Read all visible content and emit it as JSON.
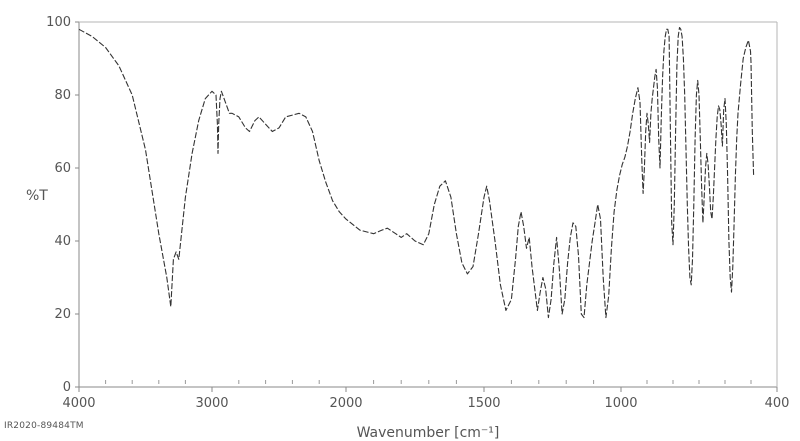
{
  "chart_data": {
    "type": "line",
    "title": "",
    "xlabel": "Wavenumber [cm⁻¹]",
    "ylabel": "%T",
    "xlim": [
      4000,
      400
    ],
    "ylim": [
      0,
      100
    ],
    "x_reversed": true,
    "x_ticks": [
      4000,
      3000,
      2000,
      1500,
      1000,
      400
    ],
    "x_tick_labels": [
      "4000",
      "3000",
      "2000",
      "1500",
      "1000",
      "400"
    ],
    "y_ticks": [
      0,
      20,
      40,
      60,
      80,
      100
    ],
    "y_tick_labels": [
      "0",
      "20",
      "40",
      "60",
      "80",
      "100"
    ],
    "grid": false,
    "line_color": "#333333",
    "series": [
      {
        "points": [
          [
            4000,
            98
          ],
          [
            3900,
            96
          ],
          [
            3800,
            93
          ],
          [
            3700,
            88
          ],
          [
            3600,
            80
          ],
          [
            3500,
            65
          ],
          [
            3400,
            42
          ],
          [
            3340,
            30
          ],
          [
            3310,
            22
          ],
          [
            3290,
            35
          ],
          [
            3270,
            37
          ],
          [
            3250,
            35
          ],
          [
            3200,
            52
          ],
          [
            3150,
            64
          ],
          [
            3100,
            73
          ],
          [
            3050,
            79
          ],
          [
            3000,
            81
          ],
          [
            2970,
            80
          ],
          [
            2960,
            72
          ],
          [
            2955,
            64
          ],
          [
            2950,
            72
          ],
          [
            2940,
            79
          ],
          [
            2930,
            81
          ],
          [
            2900,
            78
          ],
          [
            2870,
            75
          ],
          [
            2850,
            75
          ],
          [
            2800,
            74
          ],
          [
            2750,
            71
          ],
          [
            2720,
            70
          ],
          [
            2680,
            73
          ],
          [
            2650,
            74
          ],
          [
            2600,
            72
          ],
          [
            2550,
            70
          ],
          [
            2500,
            71
          ],
          [
            2450,
            74
          ],
          [
            2400,
            74.5
          ],
          [
            2350,
            75
          ],
          [
            2300,
            74
          ],
          [
            2250,
            70
          ],
          [
            2200,
            62
          ],
          [
            2150,
            56
          ],
          [
            2100,
            51
          ],
          [
            2050,
            48
          ],
          [
            2000,
            46
          ],
          [
            1950,
            43
          ],
          [
            1900,
            42
          ],
          [
            1870,
            43
          ],
          [
            1850,
            43.5
          ],
          [
            1820,
            42
          ],
          [
            1800,
            41
          ],
          [
            1780,
            42
          ],
          [
            1750,
            40
          ],
          [
            1720,
            39
          ],
          [
            1700,
            42
          ],
          [
            1680,
            50
          ],
          [
            1660,
            55
          ],
          [
            1640,
            56.5
          ],
          [
            1620,
            52
          ],
          [
            1600,
            42
          ],
          [
            1580,
            34
          ],
          [
            1560,
            31
          ],
          [
            1540,
            33
          ],
          [
            1520,
            42
          ],
          [
            1500,
            52
          ],
          [
            1490,
            55
          ],
          [
            1480,
            51
          ],
          [
            1460,
            40
          ],
          [
            1440,
            28
          ],
          [
            1420,
            21
          ],
          [
            1400,
            24
          ],
          [
            1385,
            35
          ],
          [
            1375,
            44
          ],
          [
            1365,
            48
          ],
          [
            1355,
            44
          ],
          [
            1345,
            38
          ],
          [
            1335,
            41
          ],
          [
            1325,
            33
          ],
          [
            1315,
            27
          ],
          [
            1305,
            21
          ],
          [
            1295,
            26
          ],
          [
            1285,
            30
          ],
          [
            1275,
            27
          ],
          [
            1265,
            19
          ],
          [
            1255,
            24
          ],
          [
            1245,
            34
          ],
          [
            1235,
            41
          ],
          [
            1225,
            32
          ],
          [
            1215,
            20
          ],
          [
            1205,
            24
          ],
          [
            1195,
            34
          ],
          [
            1185,
            41
          ],
          [
            1175,
            45
          ],
          [
            1165,
            44
          ],
          [
            1155,
            36
          ],
          [
            1145,
            20
          ],
          [
            1135,
            19
          ],
          [
            1125,
            28
          ],
          [
            1115,
            34
          ],
          [
            1105,
            40
          ],
          [
            1095,
            45
          ],
          [
            1085,
            50
          ],
          [
            1075,
            46
          ],
          [
            1065,
            30
          ],
          [
            1055,
            19
          ],
          [
            1045,
            25
          ],
          [
            1035,
            38
          ],
          [
            1025,
            48
          ],
          [
            1015,
            54
          ],
          [
            1005,
            58
          ],
          [
            995,
            61
          ],
          [
            985,
            63
          ],
          [
            975,
            66
          ],
          [
            965,
            70
          ],
          [
            955,
            75
          ],
          [
            945,
            79
          ],
          [
            935,
            82
          ],
          [
            927,
            78
          ],
          [
            920,
            62
          ],
          [
            915,
            53
          ],
          [
            910,
            60
          ],
          [
            905,
            70
          ],
          [
            900,
            75
          ],
          [
            895,
            72
          ],
          [
            890,
            67
          ],
          [
            885,
            75
          ],
          [
            880,
            79
          ],
          [
            875,
            82
          ],
          [
            870,
            85
          ],
          [
            865,
            87
          ],
          [
            860,
            82
          ],
          [
            855,
            68
          ],
          [
            850,
            60
          ],
          [
            845,
            74
          ],
          [
            840,
            85
          ],
          [
            835,
            92
          ],
          [
            830,
            96
          ],
          [
            825,
            98
          ],
          [
            820,
            98
          ],
          [
            815,
            96
          ],
          [
            810,
            70
          ],
          [
            805,
            45
          ],
          [
            800,
            39
          ],
          [
            795,
            50
          ],
          [
            790,
            70
          ],
          [
            785,
            88
          ],
          [
            780,
            96
          ],
          [
            775,
            98.5
          ],
          [
            770,
            98
          ],
          [
            765,
            96
          ],
          [
            760,
            90
          ],
          [
            755,
            80
          ],
          [
            750,
            65
          ],
          [
            745,
            50
          ],
          [
            740,
            38
          ],
          [
            735,
            30
          ],
          [
            730,
            28
          ],
          [
            725,
            35
          ],
          [
            720,
            50
          ],
          [
            715,
            68
          ],
          [
            710,
            80
          ],
          [
            705,
            84
          ],
          [
            700,
            80
          ],
          [
            695,
            68
          ],
          [
            690,
            55
          ],
          [
            685,
            45
          ],
          [
            680,
            52
          ],
          [
            675,
            60
          ],
          [
            670,
            64
          ],
          [
            665,
            61
          ],
          [
            660,
            55
          ],
          [
            655,
            48
          ],
          [
            650,
            46
          ],
          [
            645,
            52
          ],
          [
            640,
            60
          ],
          [
            635,
            68
          ],
          [
            630,
            74
          ],
          [
            625,
            77
          ],
          [
            620,
            76
          ],
          [
            615,
            72
          ],
          [
            610,
            66
          ],
          [
            605,
            76
          ],
          [
            600,
            79
          ],
          [
            595,
            72
          ],
          [
            590,
            58
          ],
          [
            585,
            40
          ],
          [
            580,
            30
          ],
          [
            575,
            26
          ],
          [
            570,
            33
          ],
          [
            565,
            45
          ],
          [
            560,
            58
          ],
          [
            555,
            68
          ],
          [
            550,
            75
          ],
          [
            540,
            83
          ],
          [
            530,
            90
          ],
          [
            520,
            93
          ],
          [
            510,
            95
          ],
          [
            502,
            92
          ],
          [
            500,
            89
          ],
          [
            495,
            70
          ],
          [
            490,
            58
          ],
          [
            485,
            58
          ]
        ]
      }
    ]
  },
  "footer": {
    "id_text": "IR2020-89484TM"
  }
}
